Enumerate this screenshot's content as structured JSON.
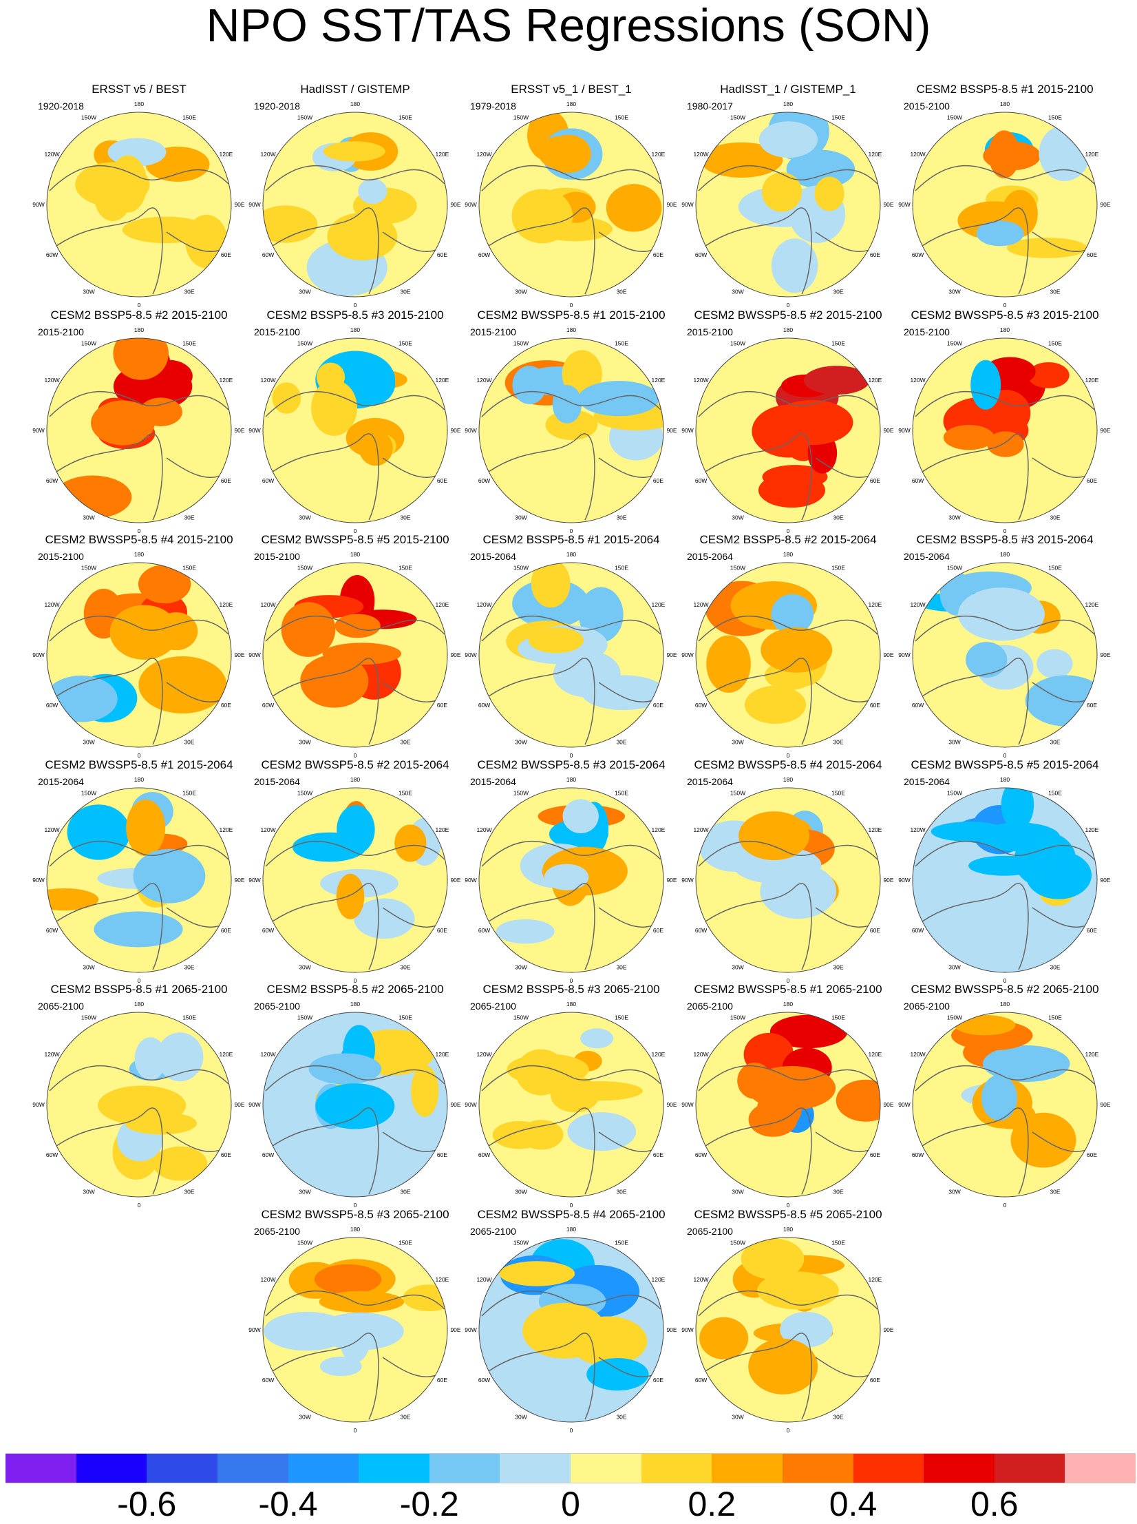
{
  "chart_data": {
    "type": "heatmap",
    "title": "NPO SST/TAS Regressions (SON)",
    "projection": "north polar stereographic",
    "longitude_labels": [
      "180",
      "150E",
      "120E",
      "90E",
      "60E",
      "30E",
      "0",
      "30W",
      "60W",
      "90W",
      "120W",
      "150W"
    ],
    "longitude_values": [
      180,
      150,
      120,
      90,
      60,
      30,
      0,
      -30,
      -60,
      -90,
      -120,
      -150
    ],
    "panels": [
      {
        "title": "ERSST v5 / BEST",
        "period": "1920-2018",
        "tone": 0
      },
      {
        "title": "HadISST / GISTEMP",
        "period": "1920-2018",
        "tone": 0
      },
      {
        "title": "ERSST v5_1 / BEST_1",
        "period": "1979-2018",
        "tone": 1
      },
      {
        "title": "HadISST_1 / GISTEMP_1",
        "period": "1980-2017",
        "tone": 0
      },
      {
        "title": "CESM2 BSSP5-8.5 #1 2015-2100",
        "period": "2015-2100",
        "tone": 1
      },
      {
        "title": "CESM2 BSSP5-8.5 #2 2015-2100",
        "period": "2015-2100",
        "tone": 3
      },
      {
        "title": "CESM2 BSSP5-8.5 #3 2015-2100",
        "period": "2015-2100",
        "tone": 1
      },
      {
        "title": "CESM2 BWSSP5-8.5 #1 2015-2100",
        "period": "2015-2100",
        "tone": -1
      },
      {
        "title": "CESM2 BWSSP5-8.5 #2 2015-2100",
        "period": "2015-2100",
        "tone": 4
      },
      {
        "title": "CESM2 BWSSP5-8.5 #3 2015-2100",
        "period": "2015-2100",
        "tone": 3
      },
      {
        "title": "CESM2 BWSSP5-8.5 #4 2015-2100",
        "period": "2015-2100",
        "tone": 2
      },
      {
        "title": "CESM2 BWSSP5-8.5 #5 2015-2100",
        "period": "2015-2100",
        "tone": 3
      },
      {
        "title": "CESM2 BSSP5-8.5 #1 2015-2064",
        "period": "2015-2064",
        "tone": 0
      },
      {
        "title": "CESM2 BSSP5-8.5 #2 2015-2064",
        "period": "2015-2064",
        "tone": 1
      },
      {
        "title": "CESM2 BSSP5-8.5 #3 2015-2064",
        "period": "2015-2064",
        "tone": -1
      },
      {
        "title": "CESM2 BWSSP5-8.5 #1 2015-2064",
        "period": "2015-2064",
        "tone": -1
      },
      {
        "title": "CESM2 BWSSP5-8.5 #2 2015-2064",
        "period": "2015-2064",
        "tone": 1
      },
      {
        "title": "CESM2 BWSSP5-8.5 #3 2015-2064",
        "period": "2015-2064",
        "tone": 1
      },
      {
        "title": "CESM2 BWSSP5-8.5 #4 2015-2064",
        "period": "2015-2064",
        "tone": 1
      },
      {
        "title": "CESM2 BWSSP5-8.5 #5 2015-2064",
        "period": "2015-2064",
        "tone": -2
      },
      {
        "title": "CESM2 BSSP5-8.5 #1 2065-2100",
        "period": "2065-2100",
        "tone": 0
      },
      {
        "title": "CESM2 BSSP5-8.5 #2 2065-2100",
        "period": "2065-2100",
        "tone": -2
      },
      {
        "title": "CESM2 BSSP5-8.5 #3 2065-2100",
        "period": "2065-2100",
        "tone": 0
      },
      {
        "title": "CESM2 BWSSP5-8.5 #1 2065-2100",
        "period": "2065-2100",
        "tone": 3
      },
      {
        "title": "CESM2 BWSSP5-8.5 #2 2065-2100",
        "period": "2065-2100",
        "tone": 1
      },
      {
        "title": "CESM2 BWSSP5-8.5 #3 2065-2100",
        "period": "2065-2100",
        "tone": 1
      },
      {
        "title": "CESM2 BWSSP5-8.5 #4 2065-2100",
        "period": "2065-2100",
        "tone": -2
      },
      {
        "title": "CESM2 BWSSP5-8.5 #5 2065-2100",
        "period": "2065-2100",
        "tone": 1
      }
    ],
    "colorbar": {
      "levels": [
        -0.8,
        -0.7,
        -0.6,
        -0.5,
        -0.4,
        -0.3,
        -0.2,
        -0.1,
        0,
        0.1,
        0.2,
        0.3,
        0.4,
        0.5,
        0.6,
        0.7,
        0.8
      ],
      "colors": [
        "#8020f0",
        "#1a00ff",
        "#2e4ae8",
        "#3878ee",
        "#1e96ff",
        "#00bfff",
        "#76c8f4",
        "#b4def4",
        "#fff78a",
        "#ffd62a",
        "#ffab00",
        "#ff7a00",
        "#ff3000",
        "#e80000",
        "#d21e1e",
        "#ffb0b0"
      ],
      "tick_labels": [
        "-0.6",
        "-0.4",
        "-0.2",
        "0",
        "0.2",
        "0.4",
        "0.6"
      ],
      "tick_values": [
        -0.6,
        -0.4,
        -0.2,
        0,
        0.2,
        0.4,
        0.6
      ]
    }
  }
}
